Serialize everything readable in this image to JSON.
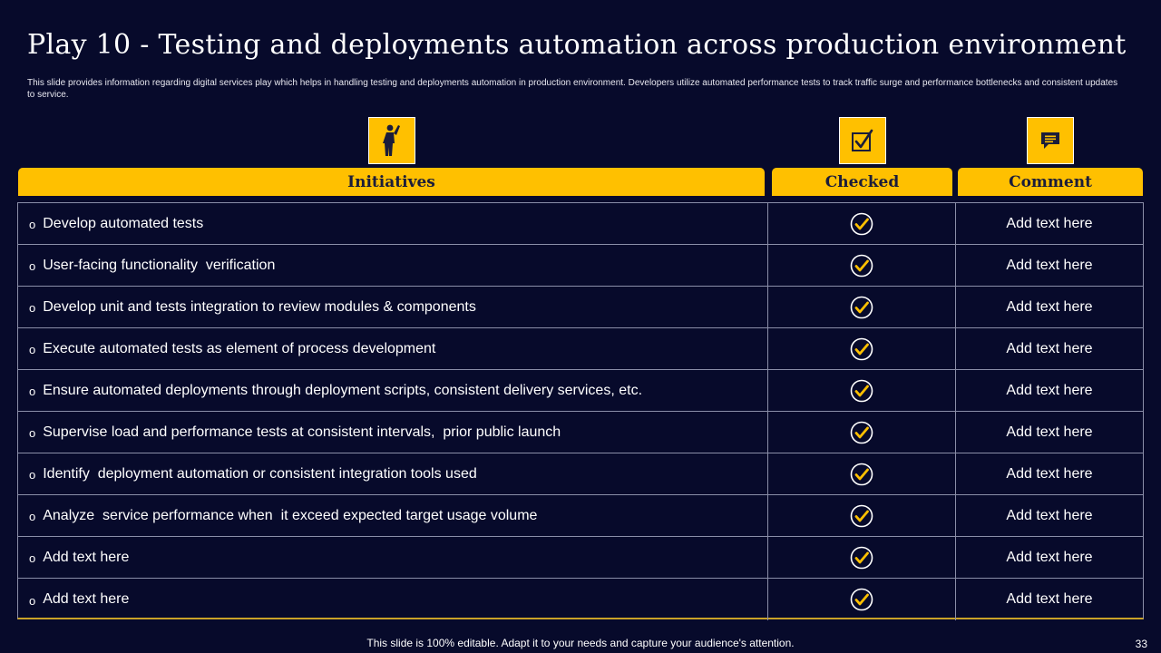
{
  "title": "Play 10 - Testing and deployments automation across production environment",
  "subtitle": "This slide provides information regarding digital services play which helps in handling testing and deployments automation in production environment. Developers utilize automated performance tests to track traffic surge and performance bottlenecks and consistent updates to service.",
  "headers": {
    "initiatives": "Initiatives",
    "checked": "Checked",
    "comment": "Comment"
  },
  "icons": {
    "initiatives": "person-raising-hand-icon",
    "checked": "checkbox-checked-icon",
    "comment": "comment-bubble-icon",
    "row_check": "check-circle-icon"
  },
  "bullet": "o",
  "rows": [
    {
      "initiative": "Develop automated tests",
      "checked": true,
      "comment": "Add text here"
    },
    {
      "initiative": "User-facing functionality  verification",
      "checked": true,
      "comment": "Add text here"
    },
    {
      "initiative": "Develop unit and tests integration to review modules & components",
      "checked": true,
      "comment": "Add text here"
    },
    {
      "initiative": "Execute automated tests as element of process development",
      "checked": true,
      "comment": "Add text here"
    },
    {
      "initiative": "Ensure automated deployments through deployment scripts, consistent delivery services, etc.",
      "checked": true,
      "comment": "Add text here"
    },
    {
      "initiative": "Supervise load and performance tests at consistent intervals,  prior public launch",
      "checked": true,
      "comment": "Add text here"
    },
    {
      "initiative": "Identify  deployment automation or consistent integration tools used",
      "checked": true,
      "comment": "Add text here"
    },
    {
      "initiative": "Analyze  service performance when  it exceed expected target usage volume",
      "checked": true,
      "comment": "Add text here"
    },
    {
      "initiative": "Add text here",
      "checked": true,
      "comment": "Add text here"
    },
    {
      "initiative": "Add text here",
      "checked": true,
      "comment": "Add text here"
    }
  ],
  "footer": "This slide is 100% editable. Adapt it to your needs and capture your audience's attention.",
  "page_number": "33",
  "colors": {
    "background": "#070a2b",
    "accent": "#ffc000",
    "header_text": "#1b1d3a",
    "grid": "#8a8ea8"
  }
}
